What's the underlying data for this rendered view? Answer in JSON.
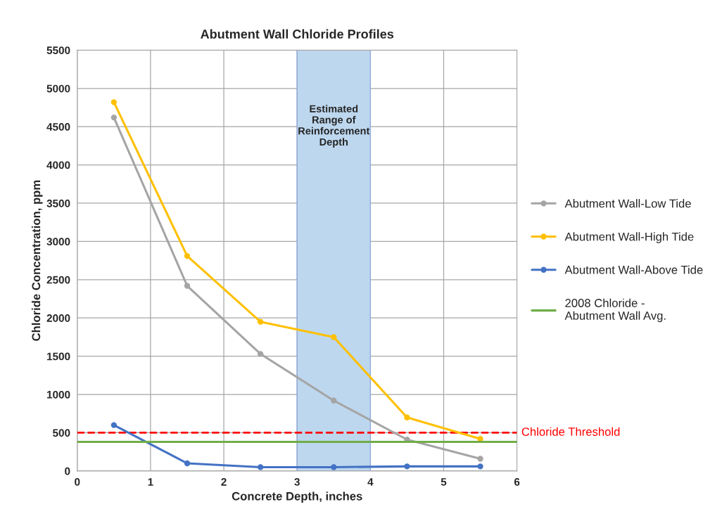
{
  "chart_data": {
    "type": "line",
    "title": "Abutment Wall Chloride Profiles",
    "xlabel": "Concrete Depth, inches",
    "ylabel": "Chloride Concentration, ppm",
    "x": [
      0.5,
      1.5,
      2.5,
      3.5,
      4.5,
      5.5
    ],
    "series": [
      {
        "name": "Abutment Wall-Low Tide",
        "color": "#a5a5a5",
        "values": [
          4620,
          2420,
          1530,
          920,
          410,
          160
        ]
      },
      {
        "name": "Abutment Wall-High Tide",
        "color": "#ffc000",
        "values": [
          4820,
          2810,
          1950,
          1750,
          700,
          420
        ]
      },
      {
        "name": "Abutment Wall-Above Tide",
        "color": "#4472c4",
        "values": [
          600,
          100,
          50,
          50,
          60,
          60
        ]
      },
      {
        "name": "2008 Chloride - Abutment Wall Avg.",
        "color": "#70ad47",
        "x": [
          0,
          6
        ],
        "values": [
          380,
          380
        ],
        "marker": "none"
      }
    ],
    "xlim": [
      0,
      6
    ],
    "xticks": [
      0,
      1,
      2,
      3,
      4,
      5,
      6
    ],
    "ylim": [
      0,
      5500
    ],
    "yticks": [
      0,
      500,
      1000,
      1500,
      2000,
      2500,
      3000,
      3500,
      4000,
      4500,
      5000,
      5500
    ],
    "ref_lines": [
      {
        "axis": "y",
        "value": 500,
        "label": "Chloride Threshold",
        "color": "#ff0000",
        "line_style": "dashed"
      }
    ],
    "bands": [
      {
        "axis": "x",
        "from": 3,
        "to": 4,
        "label": "Estimated\nRange of\nReinforcement\nDepth",
        "color": "#bdd7ee"
      }
    ],
    "grid": true,
    "legend": "right",
    "marker": "circle",
    "line_style": "solid"
  }
}
